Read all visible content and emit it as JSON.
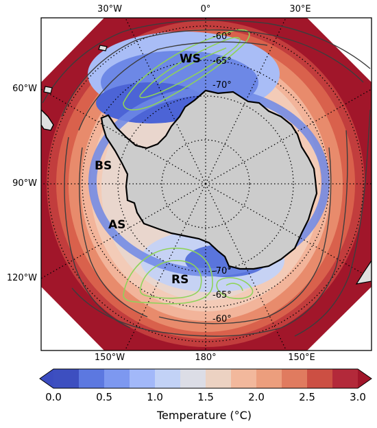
{
  "map": {
    "projection": "south-polar-stereographic",
    "top_lon_labels": [
      "30°W",
      "0°",
      "30°E"
    ],
    "bottom_lon_labels": [
      "150°W",
      "180°",
      "150°E"
    ],
    "left_lon_labels": [
      "60°W",
      "90°W",
      "120°W"
    ],
    "top_lat_labels": [
      "-60°",
      "-65°",
      "-70°"
    ],
    "bottom_lat_labels": [
      "-70°",
      "-65°",
      "-60°"
    ],
    "region_labels": [
      "WS",
      "BS",
      "AS",
      "RS"
    ],
    "contour_color": "#8fd35a",
    "land_color": "#cccccc",
    "ocean_warm_color": "#a1162a"
  },
  "colorbar": {
    "ticks": [
      "0.0",
      "0.5",
      "1.0",
      "1.5",
      "2.0",
      "2.5",
      "3.0"
    ],
    "label": "Temperature (°C)",
    "colors": [
      "#3d4fc0",
      "#5c78e0",
      "#7d98f0",
      "#a2b8f9",
      "#c2d2f6",
      "#dcdde6",
      "#ecd2c2",
      "#f2b89c",
      "#ec9e7d",
      "#e07b5f",
      "#cc4f43",
      "#b3293a"
    ],
    "extend_low_color": "#3b4cc0",
    "extend_high_color": "#a1162a"
  }
}
